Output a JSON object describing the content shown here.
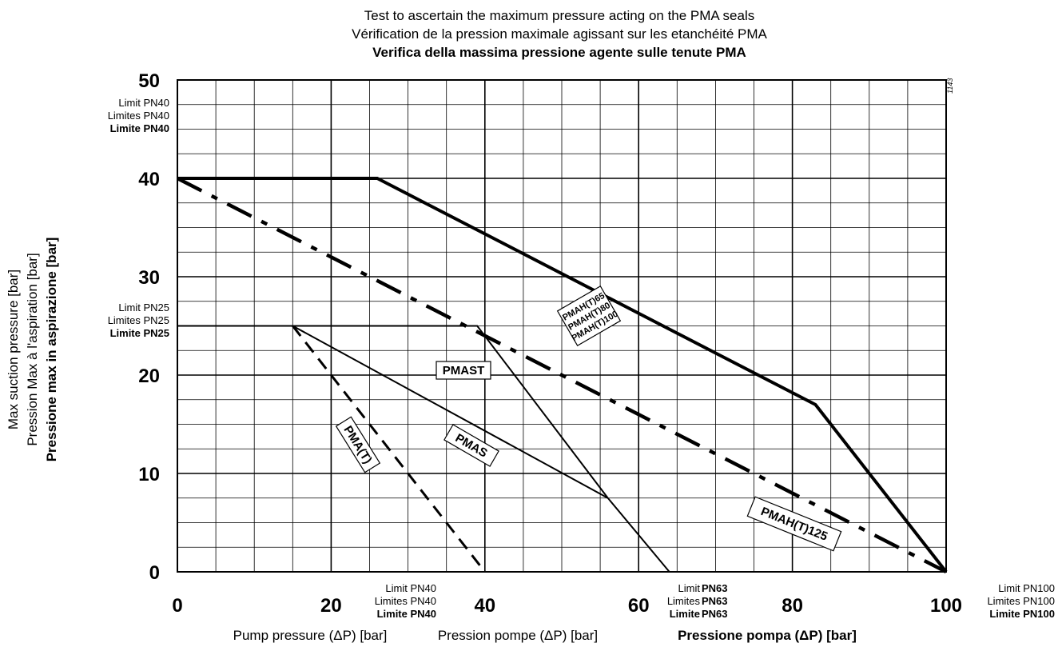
{
  "chart_data": {
    "type": "line",
    "title": [
      "Test to ascertain the maximum pressure acting on the PMA seals",
      "Vérification de la pression maximale agissant sur les etanchéité PMA",
      "Verifica della massima pressione agente sulle tenute PMA"
    ],
    "xlabel": [
      "Pump pressure (ΔP) [bar]",
      "Pression pompe (ΔP) [bar]",
      "Pressione pompa (ΔP) [bar]"
    ],
    "ylabel": [
      "Max suction pressure [bar]",
      "Pression Max à l'aspiration [bar]",
      "Pressione max in aspirazione [bar]"
    ],
    "xlim": [
      0,
      100
    ],
    "ylim": [
      0,
      50
    ],
    "xticks": [
      "0",
      "20",
      "40",
      "60",
      "80",
      "100"
    ],
    "yticks": [
      "0",
      "10",
      "20",
      "30",
      "40",
      "50"
    ],
    "grid": true,
    "figure_code": "1143",
    "y_limit_notes": [
      {
        "y": 40,
        "lines": [
          "Limit PN40",
          "Limites PN40",
          "Limite PN40"
        ]
      },
      {
        "y": 25,
        "lines": [
          "Limit PN25",
          "Limites PN25",
          "Limite PN25"
        ]
      }
    ],
    "x_limit_notes": [
      {
        "x": 40,
        "lines": [
          "Limit PN40",
          "Limites PN40",
          "Limite PN40"
        ]
      },
      {
        "x": 60,
        "prefix": [
          "Limit",
          "Limites",
          "Limite"
        ],
        "value": "PN63"
      },
      {
        "x": 100,
        "lines": [
          "Limit PN100",
          "Limites PN100",
          "Limite PN100"
        ]
      }
    ],
    "series": [
      {
        "name": "PMAH(T)65\nPMAH(T)80\nPMAH(T)100",
        "style": "solid-thick",
        "points": [
          [
            0,
            40
          ],
          [
            26,
            40
          ],
          [
            83,
            17
          ],
          [
            100,
            0
          ]
        ]
      },
      {
        "name": "PMAH(T)125",
        "style": "dash-dot-thick",
        "points": [
          [
            0,
            40
          ],
          [
            100,
            0
          ]
        ]
      },
      {
        "name": "PMAST",
        "style": "solid",
        "points": [
          [
            0,
            25
          ],
          [
            39,
            25
          ],
          [
            56,
            7.5
          ],
          [
            64,
            0
          ]
        ]
      },
      {
        "name": "PMAS",
        "style": "solid",
        "points": [
          [
            15,
            25
          ],
          [
            56,
            7.5
          ]
        ]
      },
      {
        "name": "PMA(T)",
        "style": "dashed",
        "points": [
          [
            15,
            25
          ],
          [
            40,
            0
          ]
        ]
      }
    ]
  }
}
